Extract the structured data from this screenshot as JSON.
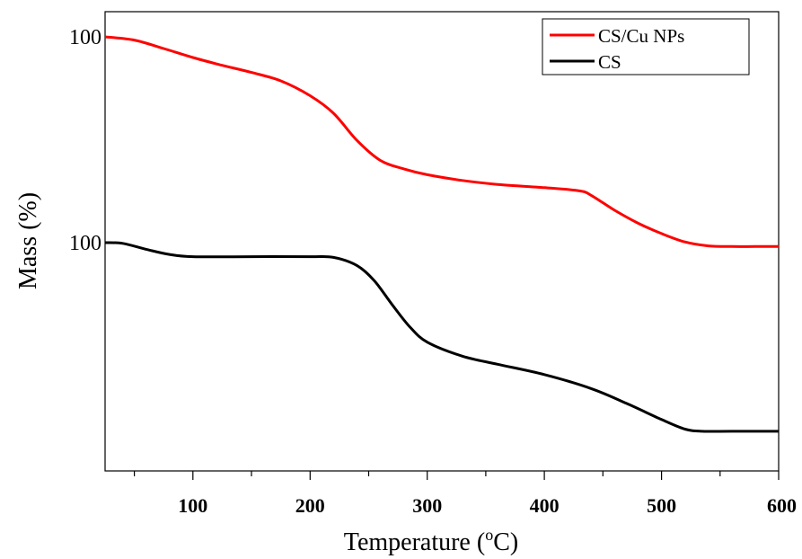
{
  "chart_data": {
    "type": "line",
    "xlabel_main": "Temperature (",
    "xlabel_sup": "o",
    "xlabel_end": "C)",
    "ylabel": "Mass (%)",
    "xlim": [
      25,
      600
    ],
    "x_ticks": [
      100,
      200,
      300,
      400,
      500,
      600
    ],
    "y_tick_labels": [
      "100",
      "100"
    ],
    "grid": false,
    "legend_position": "top-right",
    "series": [
      {
        "name": "CS/Cu NPs",
        "color": "#ff0000",
        "x": [
          25,
          50,
          75,
          100,
          125,
          150,
          175,
          200,
          220,
          240,
          260,
          280,
          300,
          330,
          360,
          400,
          430,
          440,
          460,
          480,
          500,
          520,
          540,
          560,
          580,
          600
        ],
        "y": [
          100,
          99.5,
          98.2,
          96.8,
          95.6,
          94.5,
          93.2,
          90.9,
          88.2,
          84.0,
          80.9,
          79.6,
          78.7,
          77.8,
          77.2,
          76.7,
          76.2,
          75.5,
          73.2,
          71.2,
          69.6,
          68.3,
          67.7,
          67.6,
          67.6,
          67.6
        ]
      },
      {
        "name": "CS",
        "color": "#000000",
        "x": [
          25,
          40,
          60,
          80,
          100,
          150,
          200,
          220,
          240,
          255,
          270,
          285,
          300,
          330,
          360,
          400,
          440,
          470,
          500,
          520,
          535,
          560,
          600
        ],
        "y": [
          100,
          99.9,
          99.1,
          98.4,
          98.1,
          98.1,
          98.1,
          98.0,
          96.9,
          94.8,
          91.6,
          88.6,
          86.5,
          84.6,
          83.5,
          82.1,
          80.2,
          78.2,
          76.0,
          74.7,
          74.4,
          74.4,
          74.4
        ]
      }
    ]
  }
}
